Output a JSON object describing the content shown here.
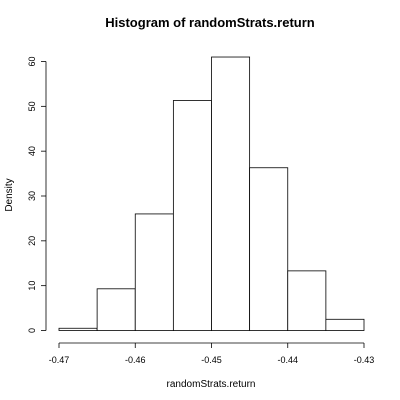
{
  "chart_data": {
    "type": "histogram",
    "title": "Histogram of randomStrats.return",
    "xlabel": "randomStrats.return",
    "ylabel": "Density",
    "xlim": [
      -0.47,
      -0.43
    ],
    "ylim": [
      0,
      63
    ],
    "x_ticks": [
      -0.47,
      -0.46,
      -0.45,
      -0.44,
      -0.43
    ],
    "x_tick_labels": [
      "-0.47",
      "-0.46",
      "-0.45",
      "-0.44",
      "-0.43"
    ],
    "y_ticks": [
      0,
      10,
      20,
      30,
      40,
      50,
      60
    ],
    "y_tick_labels": [
      "0",
      "10",
      "20",
      "30",
      "40",
      "50",
      "60"
    ],
    "grid": false,
    "bins": [
      {
        "x0": -0.47,
        "x1": -0.465,
        "density": 0.5
      },
      {
        "x0": -0.465,
        "x1": -0.46,
        "density": 9.3
      },
      {
        "x0": -0.46,
        "x1": -0.455,
        "density": 26.0
      },
      {
        "x0": -0.455,
        "x1": -0.45,
        "density": 51.3
      },
      {
        "x0": -0.45,
        "x1": -0.445,
        "density": 61.0
      },
      {
        "x0": -0.445,
        "x1": -0.44,
        "density": 36.3
      },
      {
        "x0": -0.44,
        "x1": -0.435,
        "density": 13.3
      },
      {
        "x0": -0.435,
        "x1": -0.43,
        "density": 2.5
      }
    ]
  }
}
